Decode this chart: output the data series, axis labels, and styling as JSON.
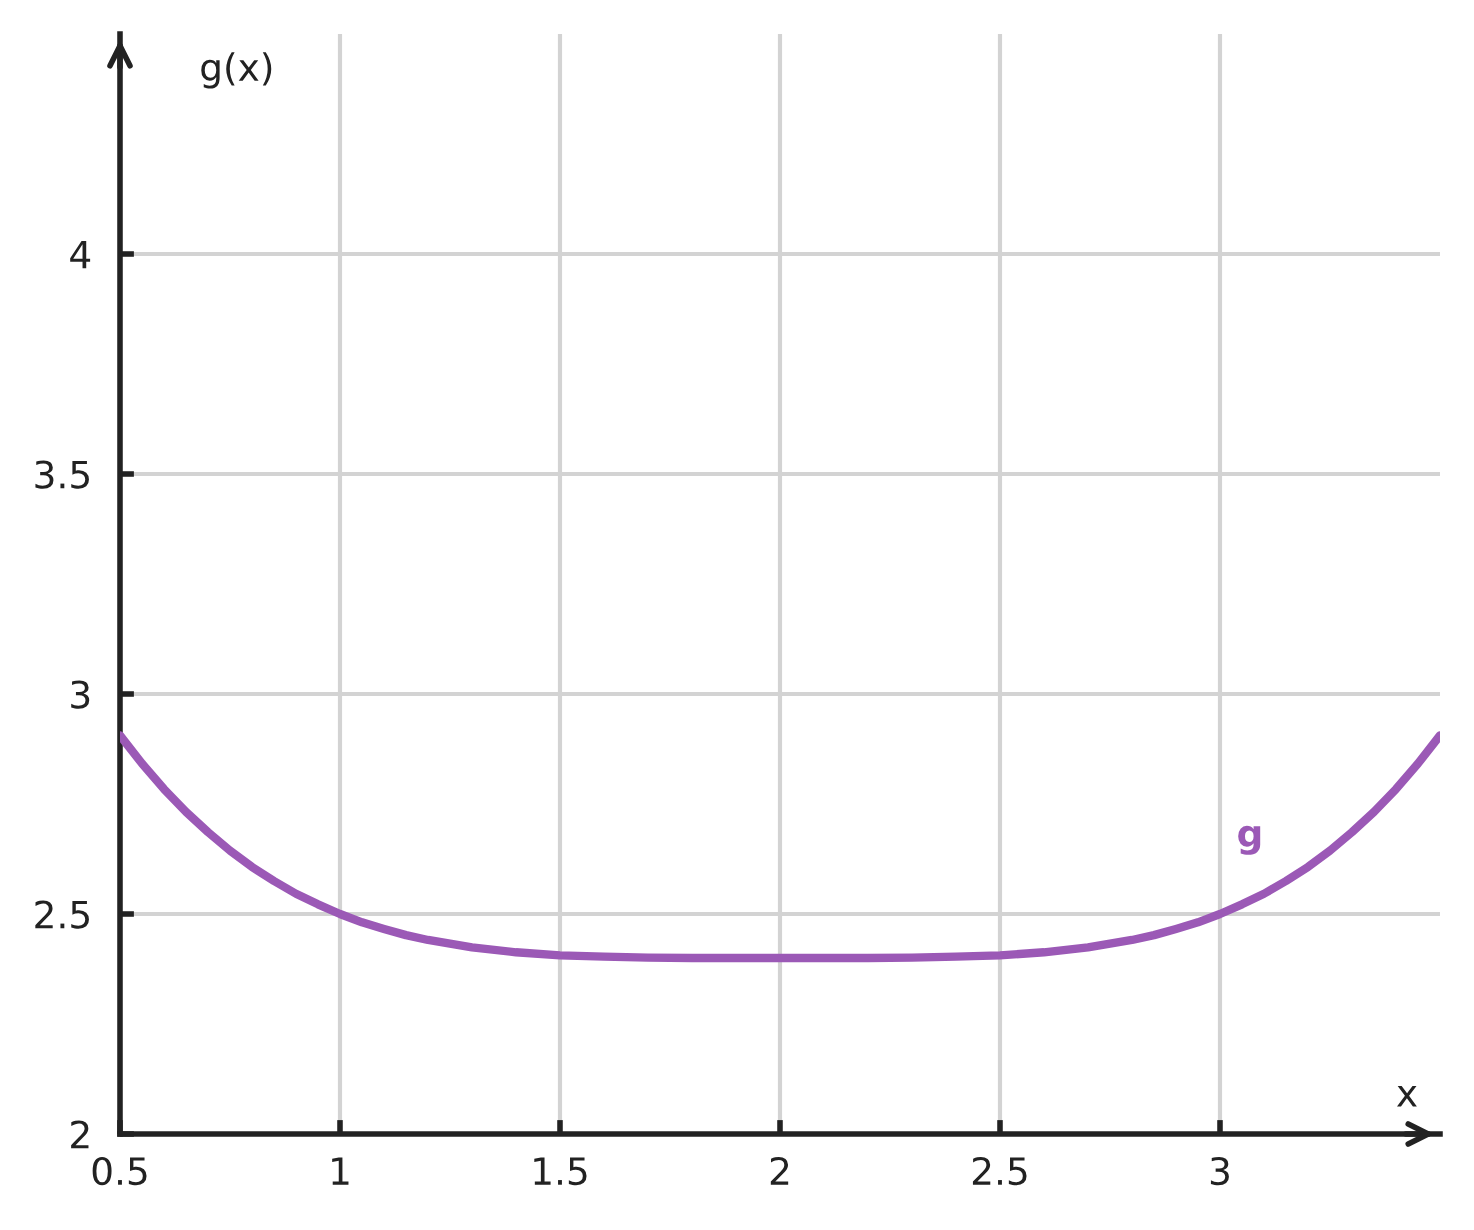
{
  "chart_data": {
    "type": "line",
    "xlabel": "x",
    "ylabel": "g(x)",
    "x": [
      0.5,
      0.55,
      0.6,
      0.65,
      0.7,
      0.75,
      0.8,
      0.85,
      0.9,
      0.95,
      1.0,
      1.05,
      1.1,
      1.15,
      1.2,
      1.3,
      1.4,
      1.5,
      1.6,
      1.7,
      1.8,
      1.9,
      2.0,
      2.1,
      2.2,
      2.3,
      2.4,
      2.5,
      2.6,
      2.7,
      2.8,
      2.85,
      2.9,
      2.95,
      3.0,
      3.05,
      3.1,
      3.15,
      3.2,
      3.25,
      3.3,
      3.35,
      3.4,
      3.45,
      3.5
    ],
    "series": [
      {
        "name": "g",
        "color": "#9b59b6",
        "values": [
          2.906,
          2.842,
          2.784,
          2.732,
          2.686,
          2.644,
          2.607,
          2.575,
          2.546,
          2.522,
          2.5,
          2.481,
          2.466,
          2.452,
          2.441,
          2.424,
          2.413,
          2.406,
          2.403,
          2.401,
          2.4,
          2.4,
          2.4,
          2.4,
          2.4,
          2.401,
          2.403,
          2.406,
          2.413,
          2.424,
          2.441,
          2.452,
          2.466,
          2.481,
          2.5,
          2.522,
          2.546,
          2.575,
          2.607,
          2.644,
          2.686,
          2.732,
          2.784,
          2.842,
          2.906
        ]
      }
    ],
    "xlim": [
      0.5,
      3.5
    ],
    "ylim": [
      2,
      4.5
    ],
    "xticks": [
      0.5,
      1,
      1.5,
      2,
      2.5,
      3
    ],
    "yticks": [
      2,
      2.5,
      3,
      3.5,
      4
    ],
    "grid": true,
    "marker": "none",
    "line_style": "solid"
  }
}
